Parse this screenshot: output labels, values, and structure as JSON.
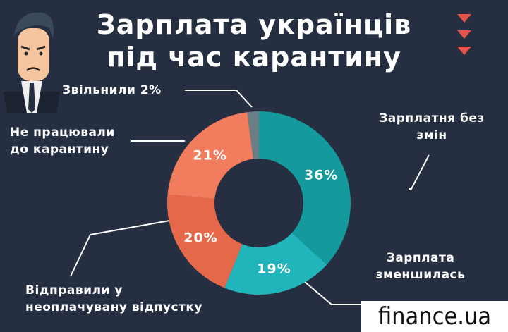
{
  "chart_data": {
    "type": "donut",
    "title": "Зарплата українців\nпід час карантину",
    "categories": [
      "Зарплатня без\nзмін",
      "Зарплата\nзменшилась",
      "Відправили у\nнеоплачувану відпустку",
      "Не працювали\nдо карантину",
      "Звільнили"
    ],
    "values": [
      36,
      19,
      20,
      21,
      2
    ],
    "value_labels": [
      "36%",
      "19%",
      "20%",
      "21%",
      "2%"
    ],
    "colors": [
      "#14999c",
      "#1fb5ba",
      "#e6684a",
      "#f27c5e",
      "#6b7e86"
    ]
  },
  "logo": "finance.ua"
}
